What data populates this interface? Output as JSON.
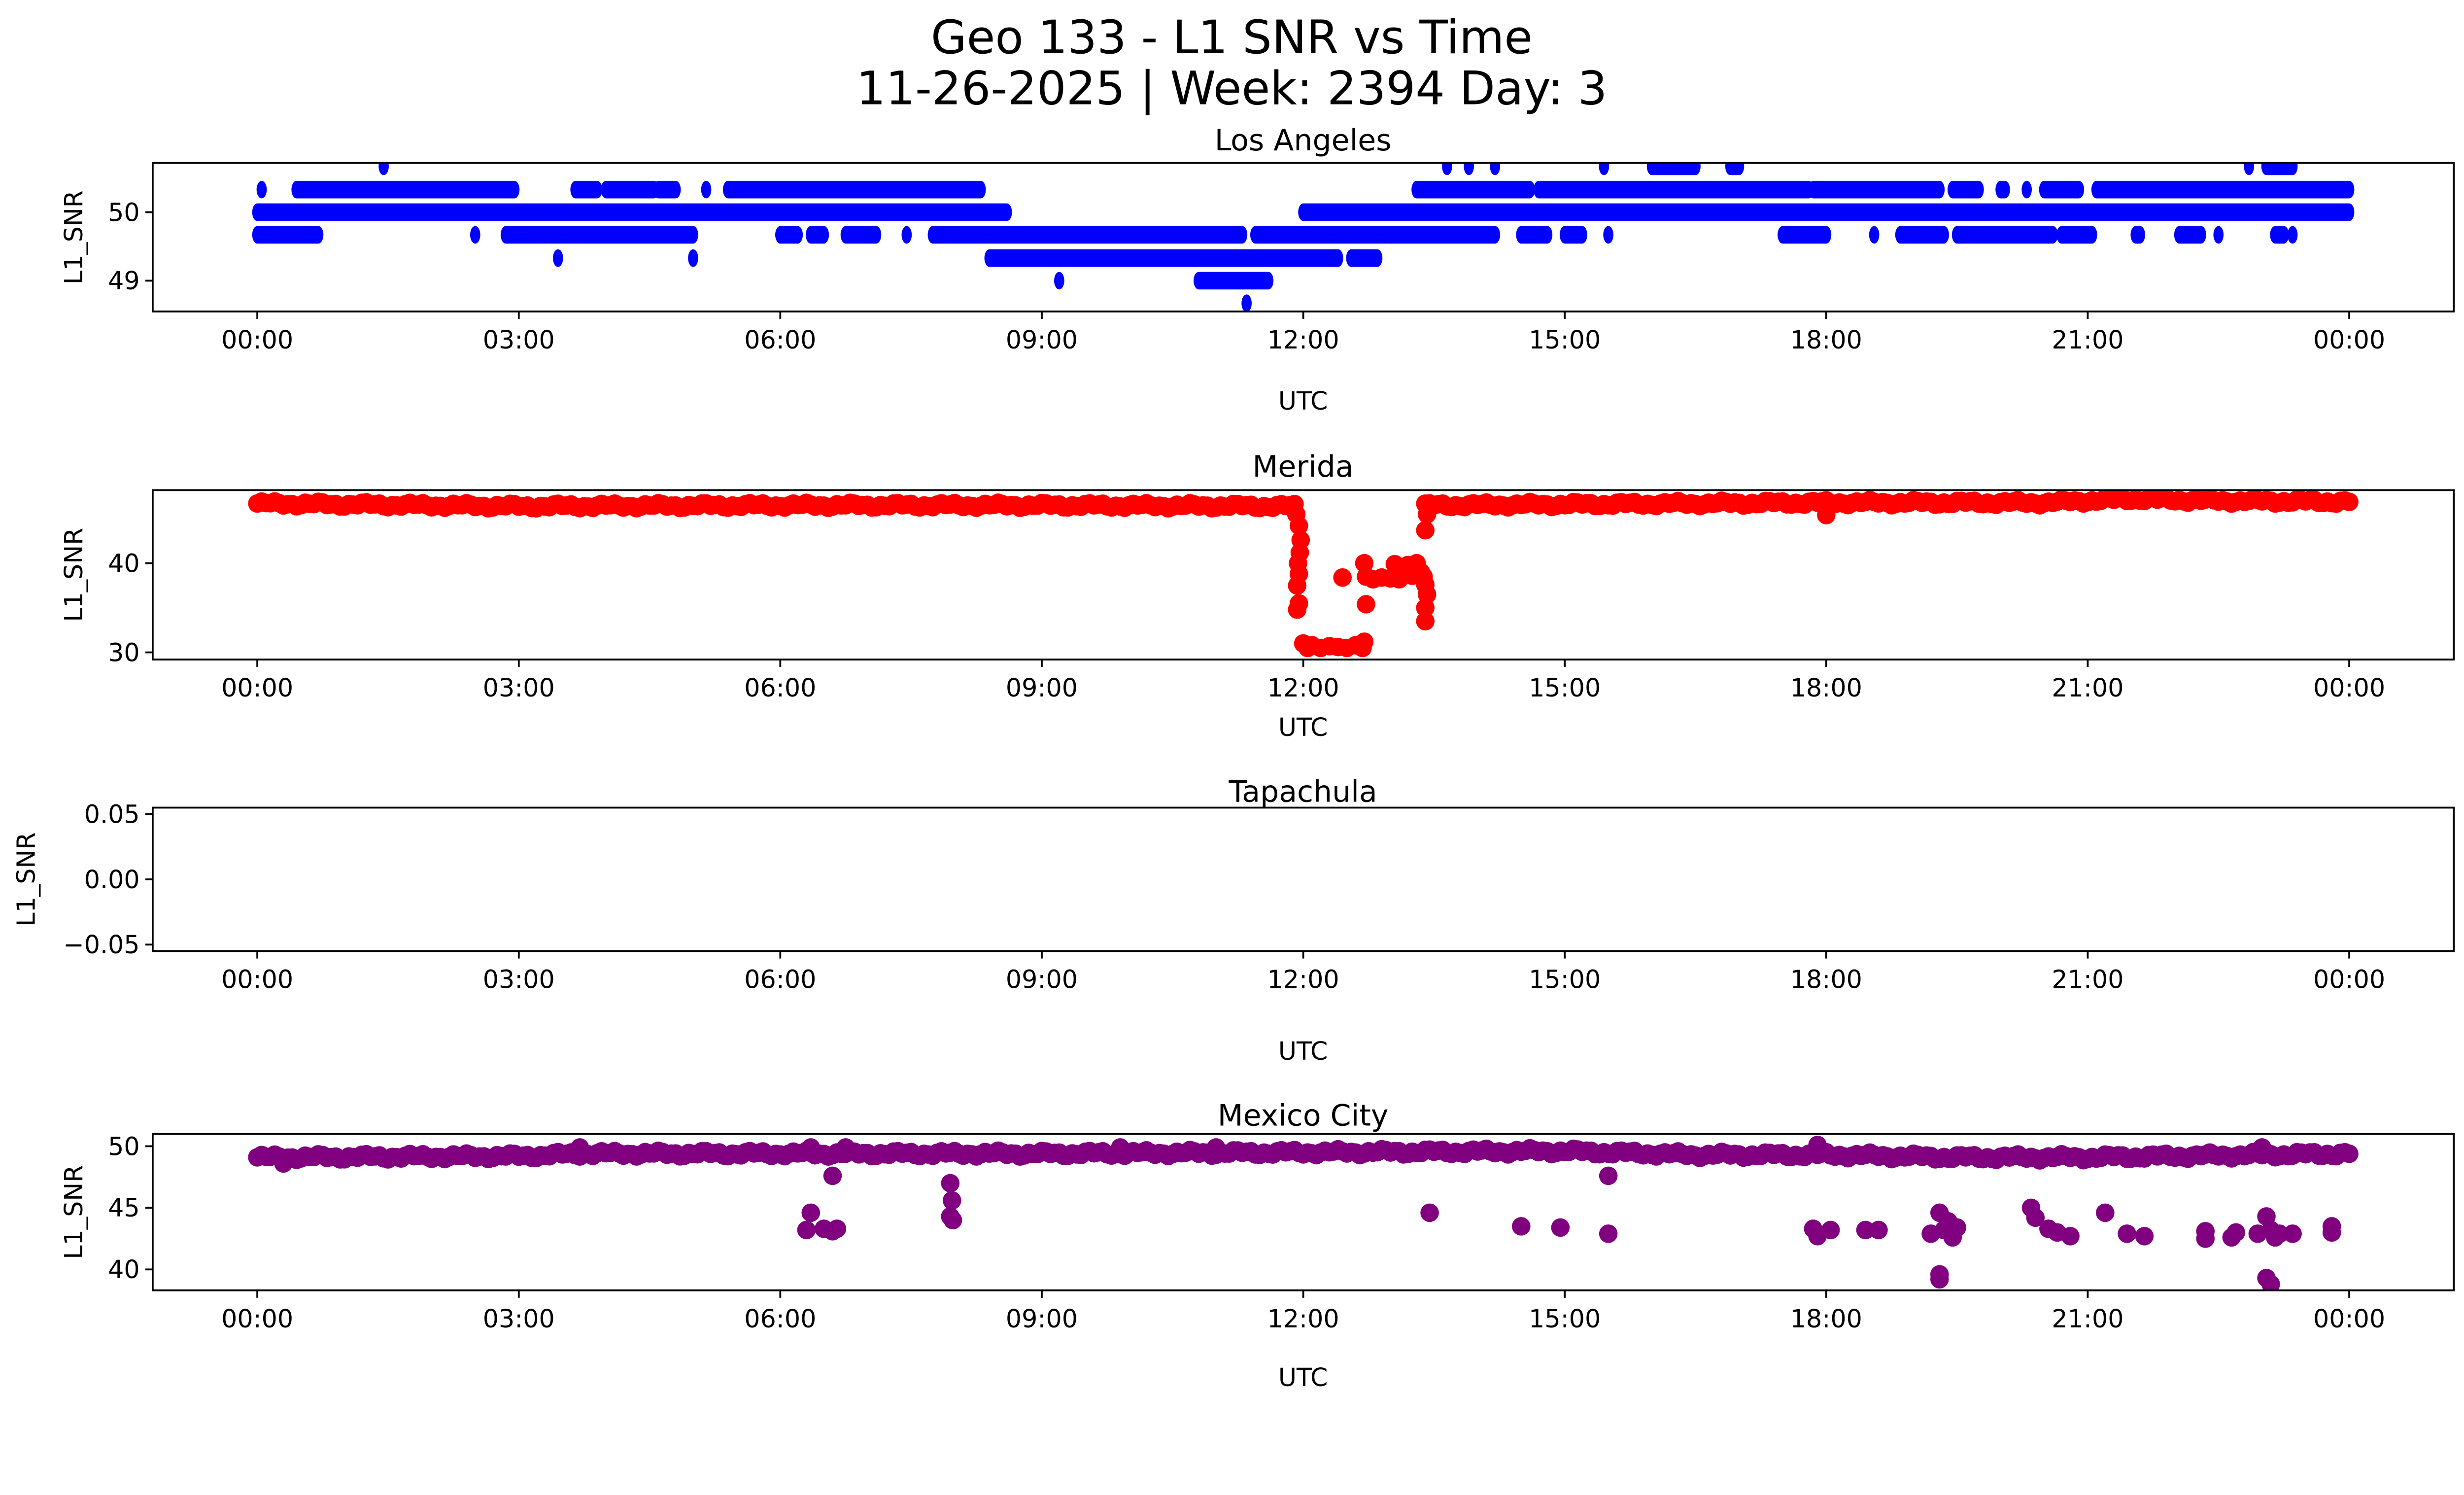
{
  "chart_data": {
    "type": "scatter",
    "title": "Geo 133 - L1 SNR vs Time",
    "subtitle": "11-26-2025 | Week: 2394 Day: 3",
    "x_ticks": [
      "00:00",
      "03:00",
      "06:00",
      "09:00",
      "12:00",
      "15:00",
      "18:00",
      "21:00",
      "00:00"
    ],
    "x_tick_hours": [
      0,
      3,
      6,
      9,
      12,
      15,
      18,
      21,
      24
    ],
    "xlim_hours": [
      -1.2,
      25.2
    ],
    "panels": [
      {
        "name": "Los Angeles",
        "color": "#0000ff",
        "xlabel": "UTC",
        "ylabel": "L1_SNR",
        "ylim": [
          48.55,
          50.72
        ],
        "y_ticks": [
          49,
          50
        ],
        "y_tick_labels": [
          "49",
          "50"
        ],
        "runs": [
          {
            "y": 50.0,
            "segments": [
              [
                0,
                8.6
              ],
              [
                12.0,
                24.0
              ]
            ]
          },
          {
            "y": 50.33,
            "segments": [
              [
                0.05,
                0.05
              ],
              [
                0.45,
                2.95
              ],
              [
                3.65,
                3.9
              ],
              [
                4.0,
                4.55
              ],
              [
                4.6,
                4.8
              ],
              [
                5.15,
                5.15
              ],
              [
                5.4,
                8.3
              ],
              [
                13.3,
                14.6
              ],
              [
                14.7,
                17.8
              ],
              [
                17.85,
                19.3
              ],
              [
                19.45,
                19.75
              ],
              [
                20.0,
                20.05
              ],
              [
                20.3,
                20.3
              ],
              [
                20.5,
                20.9
              ],
              [
                21.1,
                24.0
              ]
            ]
          },
          {
            "y": 50.67,
            "segments": [
              [
                1.45,
                1.45
              ],
              [
                13.65,
                13.65
              ],
              [
                13.9,
                13.9
              ],
              [
                14.2,
                14.2
              ],
              [
                15.45,
                15.45
              ],
              [
                16.0,
                16.5
              ],
              [
                16.9,
                17.0
              ],
              [
                22.85,
                22.85
              ],
              [
                23.05,
                23.35
              ]
            ]
          },
          {
            "y": 49.67,
            "segments": [
              [
                0,
                0.7
              ],
              [
                2.5,
                2.5
              ],
              [
                2.85,
                5.0
              ],
              [
                6.0,
                6.2
              ],
              [
                6.35,
                6.5
              ],
              [
                6.75,
                7.1
              ],
              [
                7.45,
                7.45
              ],
              [
                7.75,
                11.3
              ],
              [
                11.45,
                14.2
              ],
              [
                14.5,
                14.8
              ],
              [
                15.0,
                15.2
              ],
              [
                15.5,
                15.5
              ],
              [
                17.5,
                18.0
              ],
              [
                18.55,
                18.55
              ],
              [
                18.85,
                19.35
              ],
              [
                19.5,
                20.6
              ],
              [
                20.7,
                21.05
              ],
              [
                21.55,
                21.6
              ],
              [
                22.05,
                22.3
              ],
              [
                22.5,
                22.5
              ],
              [
                23.15,
                23.25
              ],
              [
                23.35,
                23.35
              ]
            ]
          },
          {
            "y": 49.33,
            "segments": [
              [
                3.45,
                3.45
              ],
              [
                5.0,
                5.0
              ],
              [
                8.4,
                12.4
              ],
              [
                12.55,
                12.85
              ]
            ]
          },
          {
            "y": 49.0,
            "segments": [
              [
                9.2,
                9.2
              ],
              [
                10.8,
                11.6
              ]
            ]
          },
          {
            "y": 48.67,
            "segments": [
              [
                11.35,
                11.35
              ]
            ]
          }
        ]
      },
      {
        "name": "Merida",
        "color": "#ff0000",
        "xlabel": "UTC",
        "ylabel": "L1_SNR",
        "ylim": [
          29.2,
          48.2
        ],
        "y_ticks": [
          30,
          40
        ],
        "y_tick_labels": [
          "30",
          "40"
        ],
        "baseline": [
          [
            0,
            46.7
          ],
          [
            3,
            46.4
          ],
          [
            6,
            46.5
          ],
          [
            9,
            46.5
          ],
          [
            11.9,
            46.4
          ],
          [
            13.5,
            46.5
          ],
          [
            15,
            46.6
          ],
          [
            18,
            46.8
          ],
          [
            20.5,
            46.8
          ],
          [
            21.5,
            47.2
          ],
          [
            22.5,
            47.0
          ],
          [
            24,
            46.9
          ]
        ],
        "points": [
          [
            11.92,
            45.5
          ],
          [
            11.95,
            44.2
          ],
          [
            11.97,
            42.6
          ],
          [
            11.96,
            41.2
          ],
          [
            11.94,
            40.0
          ],
          [
            11.95,
            38.8
          ],
          [
            11.93,
            37.5
          ],
          [
            11.95,
            35.5
          ],
          [
            11.93,
            34.8
          ],
          [
            12.0,
            31.0
          ],
          [
            12.05,
            30.5
          ],
          [
            12.1,
            30.8
          ],
          [
            12.2,
            30.5
          ],
          [
            12.3,
            30.7
          ],
          [
            12.4,
            30.6
          ],
          [
            12.5,
            30.5
          ],
          [
            12.6,
            30.8
          ],
          [
            12.68,
            30.5
          ],
          [
            12.7,
            31.2
          ],
          [
            12.45,
            38.4
          ],
          [
            12.7,
            40.0
          ],
          [
            12.72,
            38.5
          ],
          [
            12.8,
            38.2
          ],
          [
            12.9,
            38.4
          ],
          [
            13.0,
            38.3
          ],
          [
            13.05,
            39.9
          ],
          [
            13.1,
            38.2
          ],
          [
            13.2,
            39.8
          ],
          [
            13.25,
            38.6
          ],
          [
            13.3,
            40.0
          ],
          [
            13.35,
            39.0
          ],
          [
            13.38,
            38.5
          ],
          [
            13.4,
            37.6
          ],
          [
            13.42,
            36.5
          ],
          [
            13.4,
            35.0
          ],
          [
            13.4,
            33.5
          ],
          [
            13.4,
            43.7
          ],
          [
            13.42,
            45.5
          ],
          [
            12.72,
            35.4
          ],
          [
            18.0,
            45.4
          ]
        ]
      },
      {
        "name": "Tapachula",
        "color": "#000000",
        "xlabel": "UTC",
        "ylabel": "L1_SNR",
        "ylim": [
          -0.055,
          0.055
        ],
        "y_ticks": [
          -0.05,
          0.0,
          0.05
        ],
        "y_tick_labels": [
          "−0.05",
          "0.00",
          "0.05"
        ],
        "points": []
      },
      {
        "name": "Mexico City",
        "color": "#800080",
        "xlabel": "UTC",
        "ylabel": "L1_SNR",
        "ylim": [
          38.3,
          51.0
        ],
        "y_ticks": [
          40,
          45,
          50
        ],
        "y_tick_labels": [
          "40",
          "45",
          "50"
        ],
        "baseline": [
          [
            0,
            49.1
          ],
          [
            3.0,
            49.2
          ],
          [
            3.8,
            49.4
          ],
          [
            9,
            49.4
          ],
          [
            12,
            49.5
          ],
          [
            15,
            49.6
          ],
          [
            16.5,
            49.3
          ],
          [
            18,
            49.3
          ],
          [
            19.5,
            49.1
          ],
          [
            21,
            49.1
          ],
          [
            22,
            49.2
          ],
          [
            24,
            49.4
          ]
        ],
        "points": [
          [
            0.3,
            48.6
          ],
          [
            3.7,
            49.9
          ],
          [
            6.35,
            44.6
          ],
          [
            6.3,
            43.2
          ],
          [
            6.5,
            43.3
          ],
          [
            6.6,
            43.1
          ],
          [
            6.65,
            43.3
          ],
          [
            6.6,
            47.6
          ],
          [
            6.35,
            49.9
          ],
          [
            6.75,
            49.9
          ],
          [
            7.95,
            47.0
          ],
          [
            7.97,
            45.6
          ],
          [
            7.95,
            44.3
          ],
          [
            7.98,
            44.0
          ],
          [
            9.9,
            49.9
          ],
          [
            11.0,
            49.9
          ],
          [
            13.45,
            44.6
          ],
          [
            14.5,
            43.5
          ],
          [
            14.95,
            43.4
          ],
          [
            15.5,
            47.6
          ],
          [
            15.5,
            42.9
          ],
          [
            17.85,
            43.3
          ],
          [
            17.9,
            42.7
          ],
          [
            18.05,
            43.2
          ],
          [
            18.45,
            43.2
          ],
          [
            18.6,
            43.2
          ],
          [
            19.2,
            42.9
          ],
          [
            19.3,
            44.6
          ],
          [
            19.35,
            43.2
          ],
          [
            19.4,
            43.9
          ],
          [
            19.45,
            42.6
          ],
          [
            19.5,
            43.4
          ],
          [
            19.3,
            39.6
          ],
          [
            19.3,
            39.2
          ],
          [
            20.35,
            45.0
          ],
          [
            20.4,
            44.2
          ],
          [
            20.55,
            43.3
          ],
          [
            20.65,
            43.0
          ],
          [
            20.8,
            42.7
          ],
          [
            21.2,
            44.6
          ],
          [
            21.45,
            42.9
          ],
          [
            21.65,
            42.7
          ],
          [
            22.35,
            43.1
          ],
          [
            22.35,
            42.5
          ],
          [
            22.65,
            42.6
          ],
          [
            22.7,
            43.0
          ],
          [
            22.95,
            42.9
          ],
          [
            23.05,
            44.3
          ],
          [
            23.1,
            43.2
          ],
          [
            23.15,
            42.6
          ],
          [
            23.2,
            42.9
          ],
          [
            23.35,
            42.9
          ],
          [
            23.05,
            39.3
          ],
          [
            23.1,
            38.8
          ],
          [
            23.8,
            43.5
          ],
          [
            23.8,
            43.0
          ],
          [
            17.9,
            50.1
          ],
          [
            23.0,
            49.9
          ]
        ]
      }
    ]
  }
}
